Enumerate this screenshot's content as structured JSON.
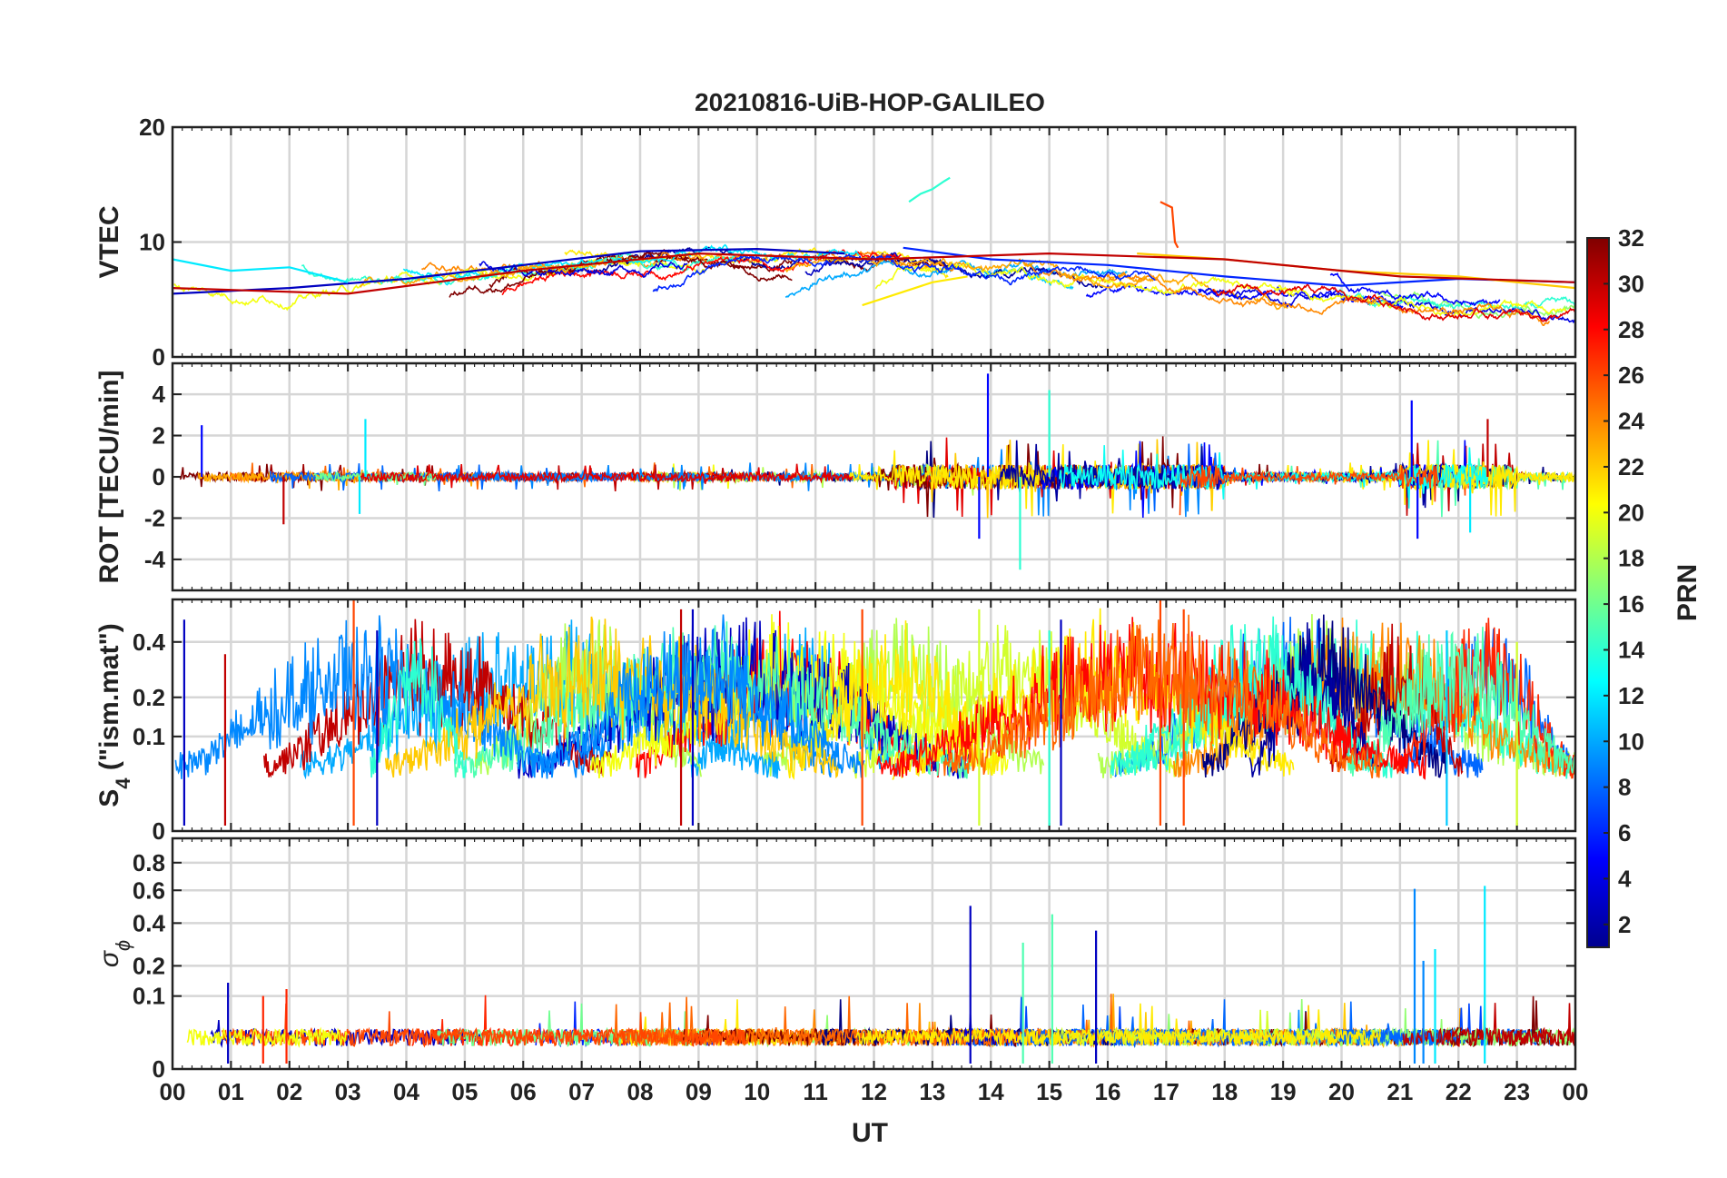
{
  "title": "20210816-UiB-HOP-GALILEO",
  "xlabel": "UT",
  "x_tick_labels": [
    "00",
    "01",
    "02",
    "03",
    "04",
    "05",
    "06",
    "07",
    "08",
    "09",
    "10",
    "11",
    "12",
    "13",
    "14",
    "15",
    "16",
    "17",
    "18",
    "19",
    "20",
    "21",
    "22",
    "23",
    "00"
  ],
  "colorbar": {
    "label": "PRN",
    "range": [
      1,
      32
    ],
    "colormap": "jet",
    "tick_labels": [
      "2",
      "4",
      "6",
      "8",
      "10",
      "12",
      "14",
      "16",
      "18",
      "20",
      "22",
      "24",
      "26",
      "28",
      "30",
      "32"
    ]
  },
  "chart_data": [
    {
      "type": "line",
      "panel": "vtec",
      "ylabel": "VTEC",
      "xlim": [
        0,
        24
      ],
      "ylim": [
        0,
        20
      ],
      "y_ticks": [
        0,
        10,
        20
      ],
      "y_tick_labels": [
        "0",
        "10",
        "20"
      ],
      "grid": true,
      "series": [
        {
          "prn": 3,
          "x": [
            0,
            2,
            4,
            6,
            8,
            10,
            11.5
          ],
          "y": [
            5.5,
            6,
            6.8,
            8,
            9.2,
            9.4,
            9
          ]
        },
        {
          "prn": 6,
          "x": [
            12.5,
            14,
            16,
            18,
            20,
            22,
            24
          ],
          "y": [
            9.5,
            8.5,
            8,
            7,
            6.2,
            6.8,
            6.5
          ]
        },
        {
          "prn": 12,
          "x": [
            0,
            1,
            2,
            3
          ],
          "y": [
            8.5,
            7.5,
            7.8,
            6.5
          ]
        },
        {
          "prn": 14,
          "x": [
            12.6,
            12.8,
            13,
            13.2,
            13.3
          ],
          "y": [
            13.5,
            14.2,
            14.6,
            15.3,
            15.6
          ]
        },
        {
          "prn": 21,
          "x": [
            11.8,
            12.4,
            13,
            13.6
          ],
          "y": [
            4.5,
            5.5,
            6.5,
            7
          ]
        },
        {
          "prn": 22,
          "x": [
            16.5,
            18,
            20,
            22,
            24
          ],
          "y": [
            9,
            8.5,
            7.5,
            7,
            6
          ]
        },
        {
          "prn": 26,
          "x": [
            16.9,
            17.1,
            17.15,
            17.2
          ],
          "y": [
            13.5,
            13,
            10,
            9.5
          ]
        },
        {
          "prn": 30,
          "x": [
            0,
            3,
            6,
            9,
            12,
            15,
            18,
            21,
            24
          ],
          "y": [
            6,
            5.5,
            7.5,
            9,
            8.5,
            9,
            8.5,
            7,
            6.5
          ]
        }
      ]
    },
    {
      "type": "line",
      "panel": "rot",
      "ylabel": "ROT [TECU/min]",
      "xlim": [
        0,
        24
      ],
      "ylim": [
        -5.5,
        5.5
      ],
      "y_ticks": [
        -4,
        -2,
        0,
        2,
        4
      ],
      "y_tick_labels": [
        "-4",
        "-2",
        "0",
        "2",
        "4"
      ],
      "grid": true,
      "series": [
        {
          "prn": 5,
          "x": [
            0.5,
            13.8,
            13.95,
            21.2,
            21.3
          ],
          "y": [
            2.5,
            -3,
            5,
            3.7,
            -3
          ]
        },
        {
          "prn": 14,
          "x": [
            14.5,
            14.55,
            15
          ],
          "y": [
            -4.5,
            0,
            4.2
          ]
        },
        {
          "prn": 12,
          "x": [
            3.2,
            3.3,
            22.2
          ],
          "y": [
            -1.8,
            2.8,
            -2.7
          ]
        },
        {
          "prn": 30,
          "x": [
            1.9,
            22.5
          ],
          "y": [
            -2.3,
            2.8
          ]
        }
      ]
    },
    {
      "type": "line",
      "panel": "s4",
      "ylabel": "S4 (\"ism.mat\")",
      "ylabel_main": "S",
      "ylabel_sub": "4",
      "ylabel_rest": " (\"ism.mat\")",
      "xlim": [
        0,
        24
      ],
      "ylim": [
        0,
        0.6
      ],
      "y_ticks": [
        0,
        0.1,
        0.2,
        0.4
      ],
      "y_tick_labels": [
        "0",
        "0.1",
        "0.2",
        "0.4"
      ],
      "y_scale": "sqrt",
      "grid": true,
      "series": [
        {
          "prn": 3,
          "x": [
            0.2,
            3.5,
            8.9,
            15.2
          ],
          "y": [
            0.5,
            0.45,
            0.55,
            0.5
          ]
        },
        {
          "prn": 26,
          "x": [
            3.1,
            11.8,
            16.9,
            17.3
          ],
          "y": [
            0.6,
            0.55,
            0.6,
            0.55
          ]
        },
        {
          "prn": 30,
          "x": [
            8.7,
            0.9
          ],
          "y": [
            0.55,
            0.35
          ]
        },
        {
          "prn": 19,
          "x": [
            13.8,
            23.0
          ],
          "y": [
            0.55,
            0.4
          ]
        },
        {
          "prn": 14,
          "x": [
            15.0
          ],
          "y": [
            0.45
          ]
        },
        {
          "prn": 11,
          "x": [
            21.8
          ],
          "y": [
            0.45
          ]
        }
      ]
    },
    {
      "type": "line",
      "panel": "sigma_phi",
      "ylabel": "σ ϕ",
      "ylabel_main": "σ",
      "ylabel_sub": "ϕ",
      "xlim": [
        0,
        24
      ],
      "ylim": [
        0,
        1
      ],
      "y_ticks": [
        0,
        0.1,
        0.2,
        0.4,
        0.6,
        0.8
      ],
      "y_tick_labels": [
        "0",
        "0.1",
        "0.2",
        "0.4",
        "0.6",
        "0.8"
      ],
      "y_scale": "sqrt",
      "grid": true,
      "series": [
        {
          "prn": 3,
          "x": [
            0.95,
            13.65,
            15.8
          ],
          "y": [
            0.14,
            0.5,
            0.36
          ]
        },
        {
          "prn": 9,
          "x": [
            21.25,
            21.4
          ],
          "y": [
            0.61,
            0.22
          ]
        },
        {
          "prn": 12,
          "x": [
            22.45,
            21.6
          ],
          "y": [
            0.63,
            0.27
          ]
        },
        {
          "prn": 15,
          "x": [
            15.05,
            14.55
          ],
          "y": [
            0.45,
            0.3
          ]
        },
        {
          "prn": 27,
          "x": [
            1.55,
            1.95
          ],
          "y": [
            0.1,
            0.12
          ]
        }
      ]
    }
  ]
}
